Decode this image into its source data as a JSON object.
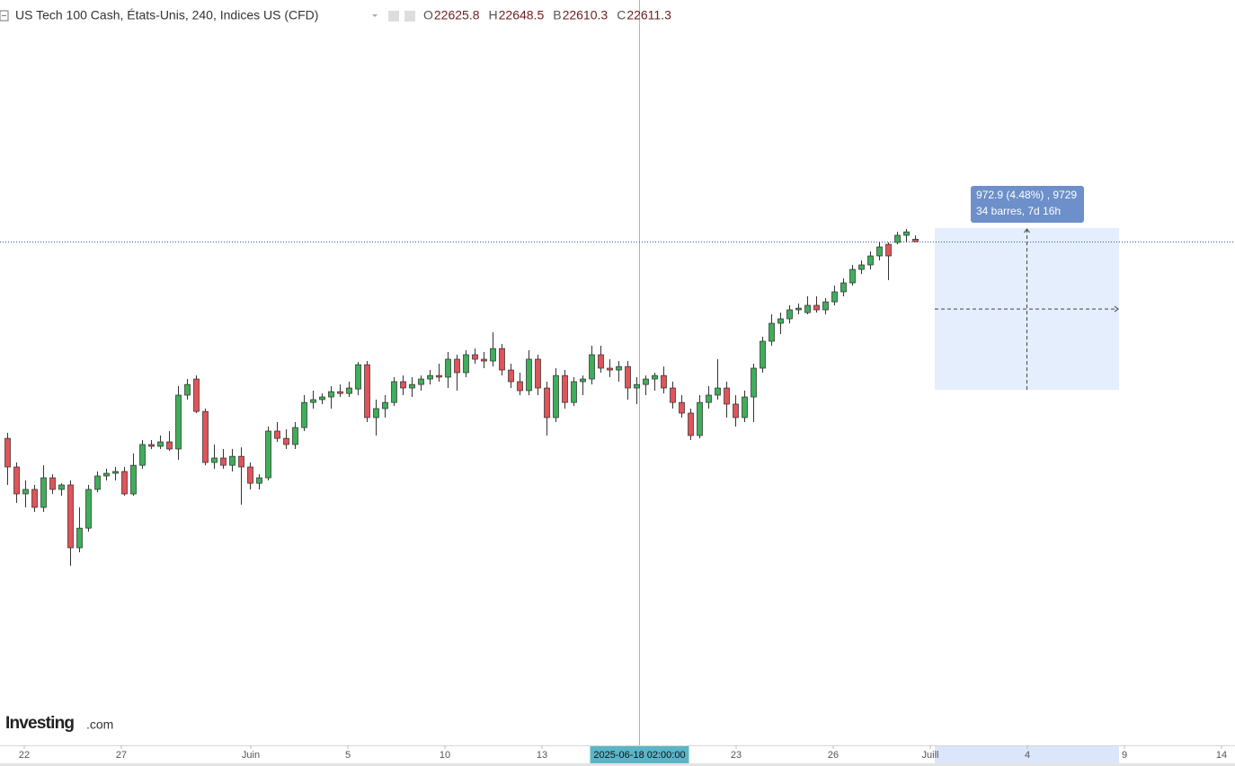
{
  "chart_data": {
    "type": "candlestick",
    "title": "US Tech 100 Cash, États-Unis, 240, Indices US (CFD)",
    "ohlc_labels": [
      "O",
      "H",
      "B",
      "C"
    ],
    "up_color": "#3fae5a",
    "down_color": "#e0545a",
    "xlim": [
      -0.8,
      136.6
    ],
    "ylim": [
      19582,
      24064
    ],
    "xticks": [
      {
        "value": 1.9,
        "label": "22"
      },
      {
        "value": 12.7,
        "label": "27"
      },
      {
        "value": 27.1,
        "label": "Juin"
      },
      {
        "value": 37.9,
        "label": "5"
      },
      {
        "value": 48.7,
        "label": "10"
      },
      {
        "value": 59.5,
        "label": "13"
      },
      {
        "value": 81.1,
        "label": "23"
      },
      {
        "value": 91.9,
        "label": "26"
      },
      {
        "value": 102.7,
        "label": "Juill"
      },
      {
        "value": 113.5,
        "label": "4"
      },
      {
        "value": 124.3,
        "label": "9"
      },
      {
        "value": 135.1,
        "label": "14"
      }
    ],
    "crosshair": {
      "value": 70.3,
      "label": "2025-06-18 02:00:00"
    },
    "measure": {
      "from": 21719.6,
      "to": 22692.5,
      "x_start": 103.2,
      "x_end": 123.7,
      "lines": [
        "972.9 (4.48%) , 9729",
        "34 barres, 7d 16h"
      ]
    },
    "brand": "Investing",
    "brand_suffix": ".com",
    "x": [
      0,
      1,
      2,
      3,
      4,
      5,
      6,
      7,
      8,
      9,
      10,
      11,
      12,
      13,
      14,
      15,
      16,
      17,
      18,
      19,
      20,
      21,
      22,
      23,
      24,
      25,
      26,
      27,
      28,
      29,
      30,
      31,
      32,
      33,
      34,
      35,
      36,
      37,
      38,
      39,
      40,
      41,
      42,
      43,
      44,
      45,
      46,
      47,
      48,
      49,
      50,
      51,
      52,
      53,
      54,
      55,
      56,
      57,
      58,
      59,
      60,
      61,
      62,
      63,
      64,
      65,
      66,
      67,
      68,
      69,
      70,
      71,
      72,
      73,
      74,
      75,
      76,
      77,
      78,
      79,
      80,
      81,
      82,
      83,
      84,
      85,
      86,
      87,
      88,
      89,
      90,
      91,
      92,
      93,
      94,
      95,
      96,
      97,
      98,
      99,
      100,
      101
    ],
    "open": [
      21428,
      21256,
      21094,
      21121,
      21013,
      21191,
      21121,
      21148,
      20770,
      20888,
      21121,
      21202,
      21218,
      21229,
      21094,
      21266,
      21391,
      21380,
      21407,
      21364,
      21688,
      21785,
      21590,
      21283,
      21310,
      21266,
      21320,
      21256,
      21158,
      21191,
      21472,
      21428,
      21391,
      21493,
      21644,
      21661,
      21677,
      21709,
      21698,
      21725,
      21871,
      21553,
      21607,
      21644,
      21769,
      21731,
      21752,
      21785,
      21806,
      21796,
      21904,
      21823,
      21931,
      21904,
      21893,
      21968,
      21839,
      21769,
      21715,
      21904,
      21731,
      21553,
      21806,
      21644,
      21769,
      21785,
      21931,
      21850,
      21839,
      21860,
      21731,
      21752,
      21785,
      21806,
      21731,
      21644,
      21580,
      21445,
      21644,
      21688,
      21731,
      21634,
      21553,
      21677,
      21850,
      22012,
      22120,
      22147,
      22201,
      22184,
      22228,
      22201,
      22249,
      22309,
      22363,
      22444,
      22471,
      22525,
      22595,
      22606,
      22649,
      22625.8
    ],
    "high": [
      21461,
      21283,
      21175,
      21148,
      21266,
      21212,
      21158,
      21175,
      21013,
      21148,
      21229,
      21245,
      21256,
      21256,
      21337,
      21418,
      21418,
      21445,
      21472,
      21742,
      21785,
      21806,
      21607,
      21391,
      21364,
      21364,
      21374,
      21283,
      21212,
      21499,
      21526,
      21482,
      21526,
      21688,
      21715,
      21698,
      21742,
      21752,
      21769,
      21887,
      21893,
      21661,
      21688,
      21796,
      21806,
      21796,
      21806,
      21839,
      21877,
      21947,
      21931,
      21958,
      21968,
      21947,
      22066,
      21995,
      21877,
      21823,
      21958,
      21931,
      21769,
      21850,
      21839,
      21796,
      21806,
      21985,
      21985,
      21904,
      21893,
      21893,
      21796,
      21806,
      21823,
      21860,
      21769,
      21688,
      21607,
      21688,
      21742,
      21904,
      21769,
      21688,
      21715,
      21877,
      22039,
      22174,
      22184,
      22228,
      22238,
      22282,
      22282,
      22271,
      22346,
      22390,
      22471,
      22498,
      22552,
      22606,
      22606,
      22670,
      22687,
      22648.5
    ],
    "low": [
      21148,
      21040,
      21013,
      20986,
      20986,
      21094,
      21083,
      20662,
      20743,
      20867,
      21104,
      21175,
      21175,
      21083,
      21083,
      21245,
      21364,
      21364,
      21353,
      21299,
      21661,
      21580,
      21266,
      21245,
      21245,
      21229,
      21029,
      21121,
      21121,
      21175,
      21407,
      21364,
      21364,
      21472,
      21607,
      21634,
      21607,
      21677,
      21677,
      21688,
      21526,
      21445,
      21553,
      21623,
      21688,
      21677,
      21715,
      21752,
      21769,
      21731,
      21715,
      21796,
      21877,
      21850,
      21860,
      21806,
      21731,
      21688,
      21688,
      21688,
      21445,
      21526,
      21607,
      21623,
      21688,
      21752,
      21823,
      21796,
      21769,
      21661,
      21634,
      21688,
      21715,
      21698,
      21607,
      21553,
      21418,
      21428,
      21607,
      21661,
      21553,
      21499,
      21526,
      21526,
      21823,
      21985,
      22055,
      22120,
      22174,
      22174,
      22184,
      22174,
      22228,
      22282,
      22346,
      22417,
      22444,
      22498,
      22379,
      22595,
      22606,
      22610.3
    ],
    "close": [
      21256,
      21094,
      21121,
      21013,
      21191,
      21121,
      21148,
      20770,
      20888,
      21121,
      21202,
      21218,
      21229,
      21094,
      21266,
      21391,
      21380,
      21407,
      21364,
      21688,
      21752,
      21590,
      21283,
      21310,
      21266,
      21320,
      21256,
      21158,
      21191,
      21472,
      21428,
      21391,
      21493,
      21644,
      21661,
      21677,
      21709,
      21698,
      21731,
      21871,
      21553,
      21607,
      21644,
      21769,
      21731,
      21752,
      21785,
      21806,
      21796,
      21904,
      21823,
      21931,
      21904,
      21893,
      21968,
      21839,
      21769,
      21715,
      21904,
      21731,
      21553,
      21806,
      21644,
      21769,
      21785,
      21931,
      21850,
      21839,
      21860,
      21731,
      21752,
      21785,
      21806,
      21731,
      21644,
      21580,
      21445,
      21644,
      21688,
      21731,
      21634,
      21553,
      21677,
      21850,
      22012,
      22120,
      22147,
      22201,
      22211,
      22228,
      22201,
      22249,
      22309,
      22363,
      22444,
      22471,
      22525,
      22579,
      22525,
      22649,
      22670,
      22611.3
    ]
  }
}
